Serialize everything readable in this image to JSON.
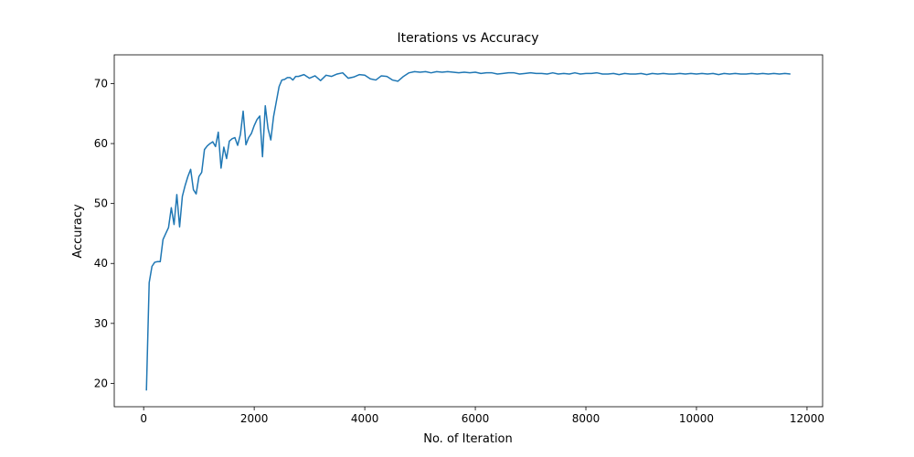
{
  "chart_data": {
    "type": "line",
    "title": "Iterations vs Accuracy",
    "xlabel": "No. of Iteration",
    "ylabel": "Accuracy",
    "color": "#1f77b4",
    "x": [
      50,
      100,
      150,
      200,
      250,
      300,
      350,
      400,
      450,
      500,
      550,
      600,
      650,
      700,
      750,
      800,
      850,
      900,
      950,
      1000,
      1050,
      1100,
      1150,
      1200,
      1250,
      1300,
      1350,
      1400,
      1450,
      1500,
      1550,
      1600,
      1650,
      1700,
      1750,
      1800,
      1850,
      1900,
      1950,
      2000,
      2050,
      2100,
      2150,
      2200,
      2250,
      2300,
      2350,
      2400,
      2450,
      2500,
      2550,
      2600,
      2650,
      2700,
      2750,
      2800,
      2900,
      3000,
      3100,
      3200,
      3300,
      3400,
      3500,
      3600,
      3700,
      3800,
      3900,
      4000,
      4100,
      4200,
      4300,
      4400,
      4500,
      4600,
      4700,
      4800,
      4900,
      5000,
      5100,
      5200,
      5300,
      5400,
      5500,
      5600,
      5700,
      5800,
      5900,
      6000,
      6100,
      6200,
      6300,
      6400,
      6500,
      6600,
      6700,
      6800,
      6900,
      7000,
      7100,
      7200,
      7300,
      7400,
      7500,
      7600,
      7700,
      7800,
      7900,
      8000,
      8100,
      8200,
      8300,
      8400,
      8500,
      8600,
      8700,
      8800,
      8900,
      9000,
      9100,
      9200,
      9300,
      9400,
      9500,
      9600,
      9700,
      9800,
      9900,
      10000,
      10100,
      10200,
      10300,
      10400,
      10500,
      10600,
      10700,
      10800,
      10900,
      11000,
      11100,
      11200,
      11300,
      11400,
      11500,
      11600,
      11700
    ],
    "values": [
      18.8,
      36.8,
      39.5,
      40.2,
      40.3,
      40.3,
      44.0,
      45.0,
      46.0,
      49.3,
      46.5,
      51.5,
      46.1,
      51.2,
      53.0,
      54.5,
      55.7,
      52.3,
      51.6,
      54.5,
      55.2,
      59.0,
      59.6,
      60.0,
      60.3,
      59.5,
      61.9,
      55.9,
      59.4,
      57.5,
      60.4,
      60.8,
      61.0,
      59.7,
      61.5,
      65.4,
      59.8,
      61.0,
      61.7,
      63.0,
      64.0,
      64.6,
      57.8,
      66.3,
      62.5,
      60.6,
      64.5,
      67.0,
      69.5,
      70.6,
      70.7,
      71.0,
      71.0,
      70.6,
      71.2,
      71.2,
      71.5,
      70.9,
      71.3,
      70.5,
      71.4,
      71.2,
      71.6,
      71.8,
      70.9,
      71.1,
      71.5,
      71.4,
      70.8,
      70.6,
      71.3,
      71.2,
      70.6,
      70.4,
      71.2,
      71.8,
      72.0,
      71.9,
      72.0,
      71.8,
      72.0,
      71.9,
      72.0,
      71.9,
      71.8,
      71.9,
      71.8,
      71.9,
      71.7,
      71.8,
      71.8,
      71.6,
      71.7,
      71.8,
      71.8,
      71.6,
      71.7,
      71.8,
      71.7,
      71.7,
      71.6,
      71.8,
      71.6,
      71.7,
      71.6,
      71.8,
      71.6,
      71.7,
      71.7,
      71.8,
      71.6,
      71.6,
      71.7,
      71.5,
      71.7,
      71.6,
      71.6,
      71.7,
      71.5,
      71.7,
      71.6,
      71.7,
      71.6,
      71.6,
      71.7,
      71.6,
      71.7,
      71.6,
      71.7,
      71.6,
      71.7,
      71.5,
      71.7,
      71.6,
      71.7,
      71.6,
      71.6,
      71.7,
      71.6,
      71.7,
      71.6,
      71.7,
      71.6,
      71.7,
      71.6
    ],
    "xlim": [
      -532,
      12282
    ],
    "ylim": [
      16.1,
      74.8
    ],
    "xticks": [
      0,
      2000,
      4000,
      6000,
      8000,
      10000,
      12000
    ],
    "yticks": [
      20,
      30,
      40,
      50,
      60,
      70
    ]
  }
}
